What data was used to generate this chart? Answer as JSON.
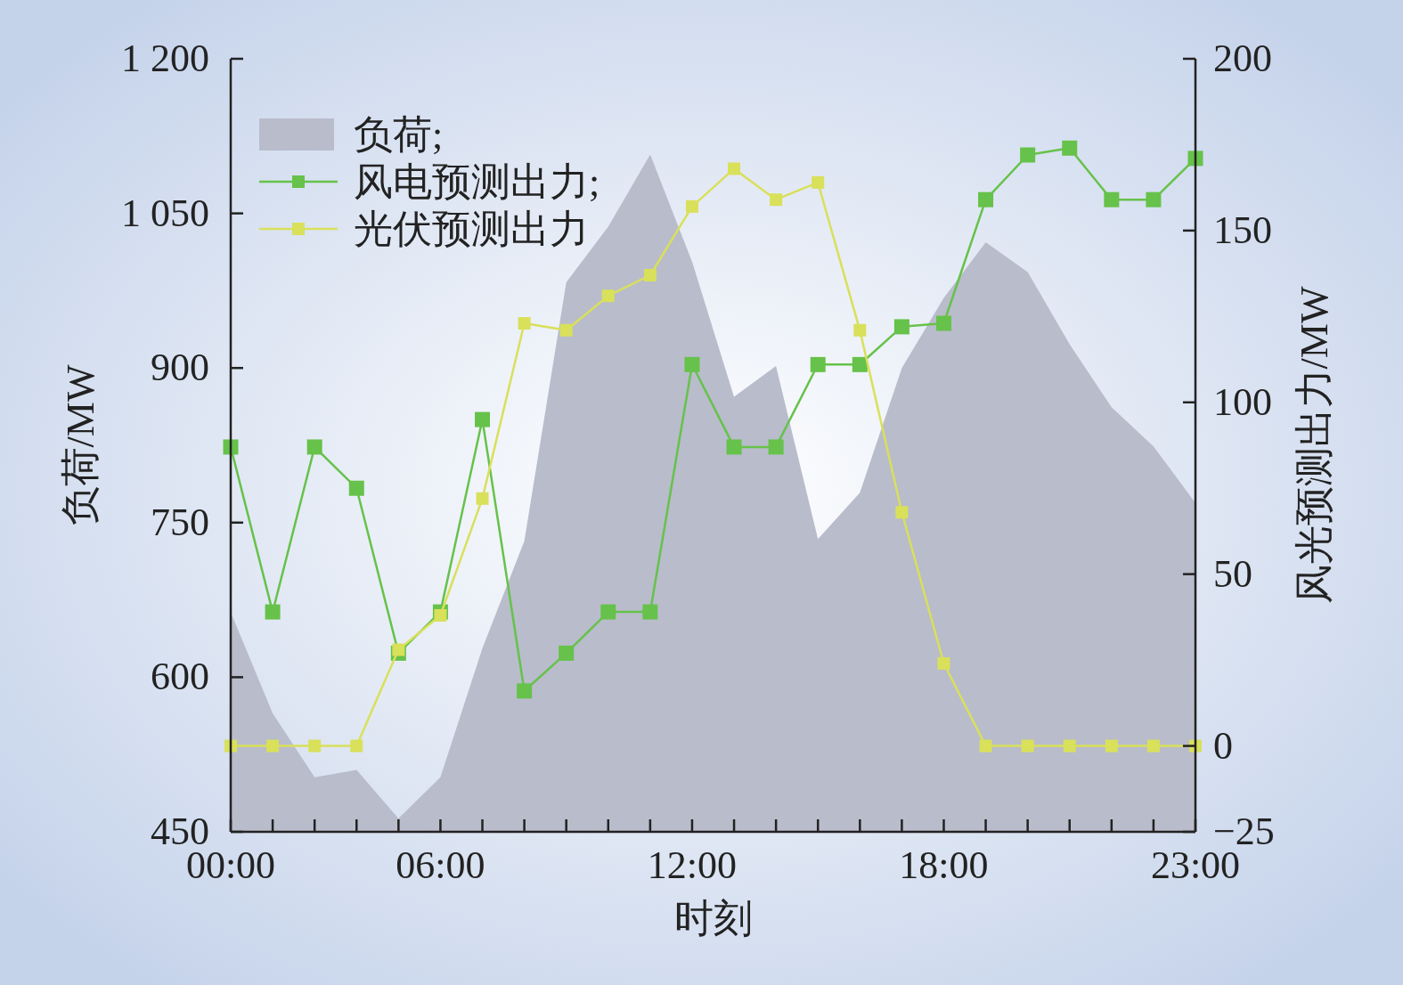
{
  "chart_data": {
    "type": "line",
    "xlabel": "时刻",
    "ylabel": "负荷/MW",
    "y2label": "风光预测出力/MW",
    "categories": [
      "00:00",
      null,
      null,
      null,
      null,
      "06:00",
      null,
      null,
      null,
      null,
      null,
      "12:00",
      null,
      null,
      null,
      null,
      null,
      "18:00",
      null,
      null,
      null,
      null,
      null,
      "23:00"
    ],
    "ylim": [
      450,
      1200
    ],
    "yticks": [
      {
        "value": 450,
        "label": "450"
      },
      {
        "value": 600,
        "label": "600"
      },
      {
        "value": 750,
        "label": "750"
      },
      {
        "value": 900,
        "label": "900"
      },
      {
        "value": 1050,
        "label": "1 050"
      },
      {
        "value": 1200,
        "label": "1 200"
      }
    ],
    "y2lim": [
      -25,
      200
    ],
    "y2ticks": [
      {
        "value": -25,
        "label": "−25"
      },
      0,
      50,
      100,
      150,
      200
    ],
    "legend": "top left",
    "series": [
      {
        "name": "负荷;",
        "type": "area",
        "color": "#b9bccb",
        "values": [
          663,
          565,
          503,
          510,
          463,
          503,
          628,
          732,
          983,
          1037,
          1107,
          1003,
          872,
          902,
          734,
          779,
          900,
          968,
          1022,
          993,
          923,
          862,
          824,
          769
        ]
      },
      {
        "name": "风电预测出力;",
        "marker": "square",
        "axis": "y2",
        "color": "#66c24a",
        "values": [
          87,
          39,
          87,
          75,
          27,
          39,
          95,
          16,
          27,
          39,
          39,
          111,
          87,
          87,
          111,
          111,
          122,
          123,
          159,
          172,
          174,
          159,
          159,
          171
        ]
      },
      {
        "name": "光伏预测出力",
        "marker": "square",
        "axis": "y2",
        "color": "#d9e05a",
        "values": [
          0,
          0,
          0,
          0,
          28,
          38,
          72,
          123,
          121,
          131,
          137,
          157,
          168,
          159,
          164,
          121,
          68,
          24,
          0,
          0,
          0,
          0,
          0,
          0
        ]
      }
    ]
  }
}
